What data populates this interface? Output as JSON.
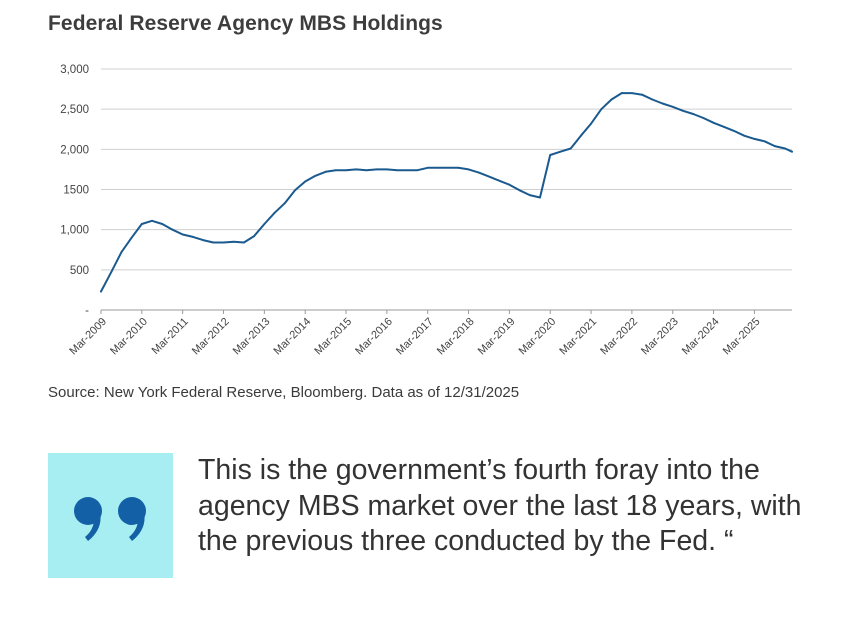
{
  "chart_data": {
    "type": "line",
    "title": "Federal Reserve Agency MBS Holdings",
    "xlabel": "",
    "ylabel": "",
    "ylim": [
      0,
      3000
    ],
    "y_ticks": [
      0,
      500,
      1000,
      1500,
      2000,
      2500,
      3000
    ],
    "y_tick_labels": [
      "-",
      "500",
      "1,000",
      "1500",
      "2,000",
      "2,500",
      "3,000"
    ],
    "grid": true,
    "x_tick_labels": [
      "Mar-2009",
      "Mar-2010",
      "Mar-2011",
      "Mar-2012",
      "Mar-2013",
      "Mar-2014",
      "Mar-2015",
      "Mar-2016",
      "Mar-2017",
      "Mar-2018",
      "Mar-2019",
      "Mar-2020",
      "Mar-2021",
      "Mar-2022",
      "Mar-2023",
      "Mar-2024",
      "Mar-2025"
    ],
    "x_range": [
      2009.0,
      2025.92
    ],
    "series": [
      {
        "name": "Agency MBS Holdings",
        "color": "#1b5a8f",
        "x": [
          2009.0,
          2009.25,
          2009.5,
          2009.75,
          2010.0,
          2010.25,
          2010.5,
          2010.75,
          2011.0,
          2011.25,
          2011.5,
          2011.75,
          2012.0,
          2012.25,
          2012.5,
          2012.75,
          2013.0,
          2013.25,
          2013.5,
          2013.75,
          2014.0,
          2014.25,
          2014.5,
          2014.75,
          2015.0,
          2015.25,
          2015.5,
          2015.75,
          2016.0,
          2016.25,
          2016.5,
          2016.75,
          2017.0,
          2017.25,
          2017.5,
          2017.75,
          2018.0,
          2018.25,
          2018.5,
          2018.75,
          2019.0,
          2019.25,
          2019.5,
          2019.75,
          2020.0,
          2020.25,
          2020.5,
          2020.75,
          2021.0,
          2021.25,
          2021.5,
          2021.75,
          2022.0,
          2022.25,
          2022.5,
          2022.75,
          2023.0,
          2023.25,
          2023.5,
          2023.75,
          2024.0,
          2024.25,
          2024.5,
          2024.75,
          2025.0,
          2025.25,
          2025.5,
          2025.75,
          2025.92
        ],
        "values": [
          230,
          470,
          720,
          900,
          1070,
          1110,
          1070,
          1000,
          940,
          910,
          870,
          840,
          840,
          850,
          840,
          920,
          1070,
          1210,
          1330,
          1490,
          1600,
          1670,
          1720,
          1740,
          1740,
          1750,
          1740,
          1750,
          1750,
          1740,
          1740,
          1740,
          1770,
          1770,
          1770,
          1770,
          1750,
          1710,
          1660,
          1610,
          1560,
          1490,
          1430,
          1400,
          1930,
          1970,
          2010,
          2170,
          2320,
          2500,
          2620,
          2700,
          2700,
          2680,
          2620,
          2570,
          2530,
          2480,
          2440,
          2390,
          2330,
          2280,
          2230,
          2170,
          2130,
          2100,
          2040,
          2010,
          1970
        ]
      }
    ]
  },
  "source": "Source:  New York Federal Reserve, Bloomberg. Data as of 12/31/2025",
  "quote": {
    "mark": "❞",
    "text": "This is the government’s fourth foray into the agency MBS market over the last 18 years, with the previous three conducted by the Fed. “"
  },
  "colors": {
    "line": "#1b5a8f",
    "quote_box": "#a6eef2",
    "quote_mark": "#1460a6",
    "grid": "#cfcfcf"
  }
}
